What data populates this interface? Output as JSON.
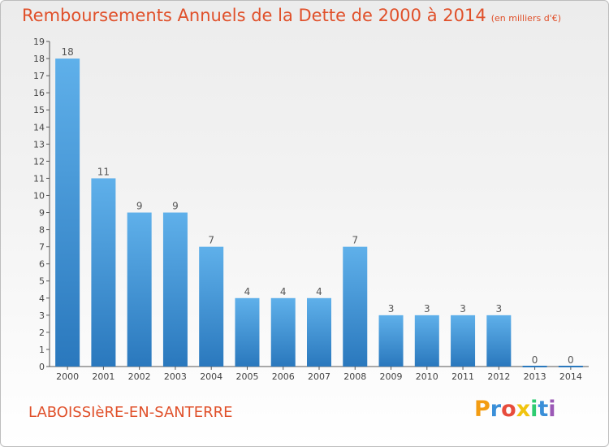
{
  "header": {
    "title": "Remboursements Annuels de la Dette de 2000 à 2014",
    "unit": "(en milliers d'€)"
  },
  "footer": {
    "commune": "LABOISSIèRE-EN-SANTERRE",
    "logo": "Proxiti",
    "logo_colors": [
      "#f39c12",
      "#3a8fd8",
      "#e74c3c",
      "#f1c40f",
      "#2ecc71",
      "#3a8fd8",
      "#9b59b6"
    ]
  },
  "colors": {
    "bar": "#4a9fe0",
    "bar_dark": "#2a78bd",
    "axis": "#555555",
    "title": "#e0502a"
  },
  "chart_data": {
    "type": "bar",
    "title": "Remboursements Annuels de la Dette de 2000 à 2014",
    "xlabel": "",
    "ylabel": "",
    "categories": [
      "2000",
      "2001",
      "2002",
      "2003",
      "2004",
      "2005",
      "2006",
      "2007",
      "2008",
      "2009",
      "2010",
      "2011",
      "2012",
      "2013",
      "2014"
    ],
    "values": [
      18,
      11,
      9,
      9,
      7,
      4,
      4,
      4,
      7,
      3,
      3,
      3,
      3,
      0,
      0
    ],
    "ylim": [
      0,
      19
    ],
    "yticks": [
      0,
      1,
      2,
      3,
      4,
      5,
      6,
      7,
      8,
      9,
      10,
      11,
      12,
      13,
      14,
      15,
      16,
      17,
      18,
      19
    ],
    "grid": false
  }
}
